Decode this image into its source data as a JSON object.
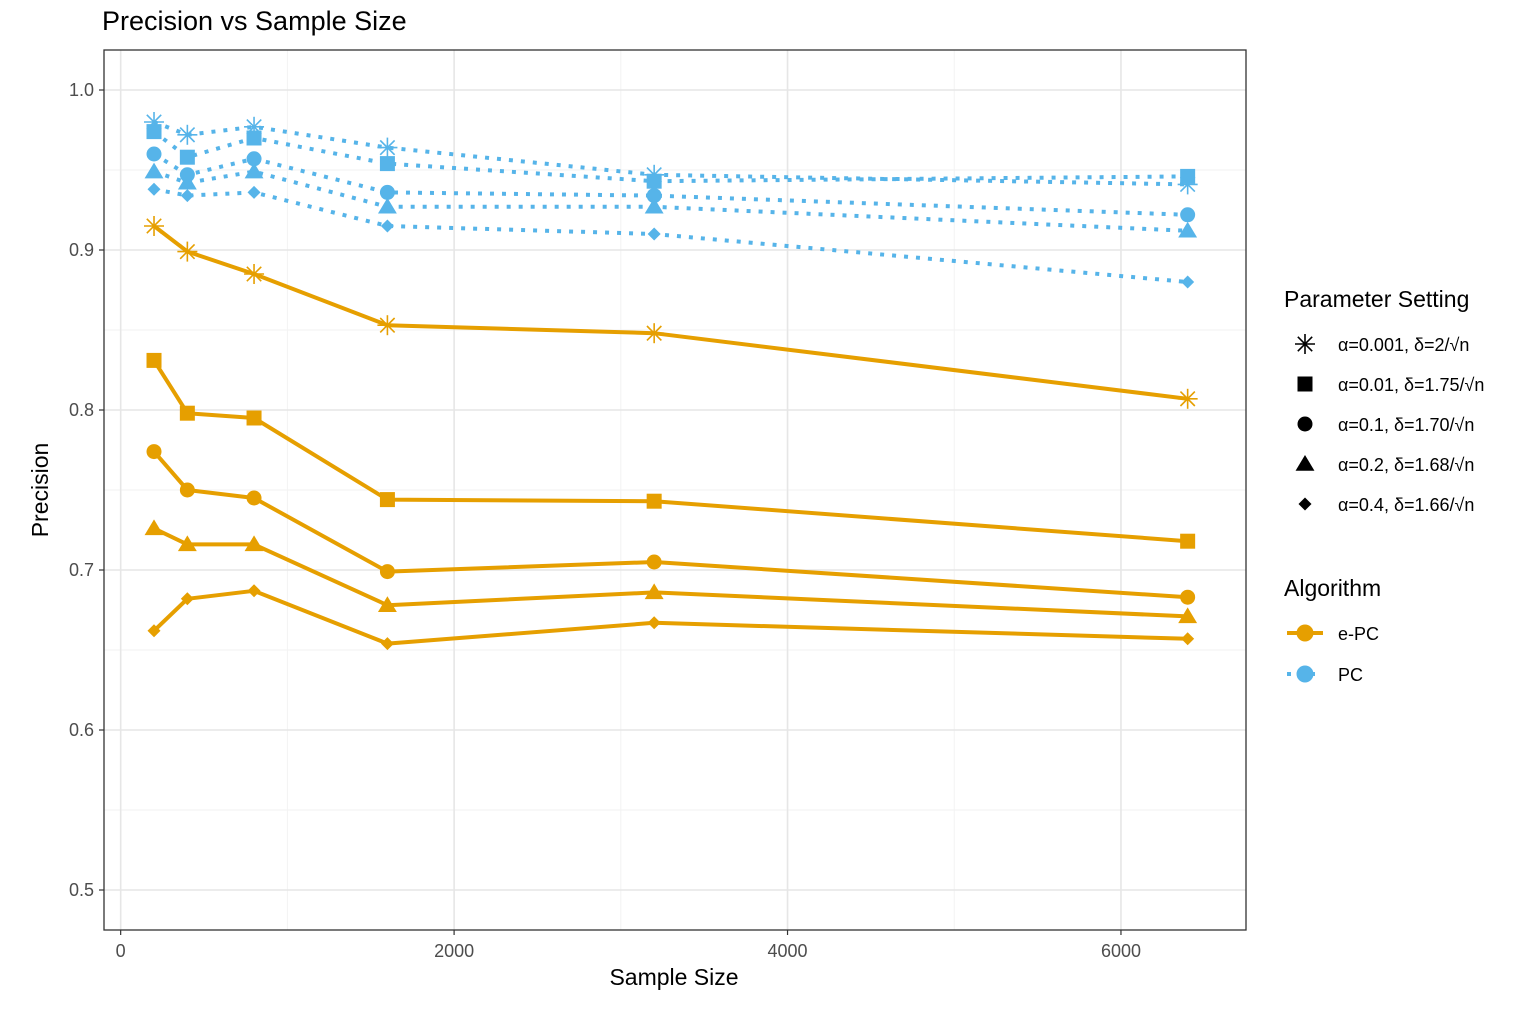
{
  "chart_data": {
    "type": "line",
    "title": "Precision vs Sample Size",
    "xlabel": "Sample Size",
    "ylabel": "Precision",
    "xlim": [
      -100,
      6750
    ],
    "ylim": [
      0.475,
      1.025
    ],
    "x_ticks": [
      0,
      2000,
      4000,
      6000
    ],
    "y_ticks": [
      0.5,
      0.6,
      0.7,
      0.8,
      0.9,
      1.0
    ],
    "y_tick_labels": [
      "0.5",
      "0.6",
      "0.7",
      "0.8",
      "0.9",
      "1.0"
    ],
    "x": [
      200,
      400,
      800,
      1600,
      3200,
      6400
    ],
    "grid": true,
    "legend_placement": "right",
    "legend_shape": {
      "title": "Parameter Setting",
      "entries": [
        {
          "label": "α=0.001, δ=2/√n",
          "shape": "asterisk"
        },
        {
          "label": "α=0.01, δ=1.75/√n",
          "shape": "square"
        },
        {
          "label": "α=0.1, δ=1.70/√n",
          "shape": "circle"
        },
        {
          "label": "α=0.2, δ=1.68/√n",
          "shape": "triangle"
        },
        {
          "label": "α=0.4, δ=1.66/√n",
          "shape": "diamond"
        }
      ]
    },
    "legend_algorithm": {
      "title": "Algorithm",
      "entries": [
        {
          "label": "e-PC",
          "color": "#E69F00",
          "line": "solid"
        },
        {
          "label": "PC",
          "color": "#56B4E9",
          "line": "dotted"
        }
      ]
    },
    "series": [
      {
        "algorithm": "e-PC",
        "shape": "asterisk",
        "values": [
          0.915,
          0.899,
          0.885,
          0.853,
          0.848,
          0.807
        ]
      },
      {
        "algorithm": "e-PC",
        "shape": "square",
        "values": [
          0.831,
          0.798,
          0.795,
          0.744,
          0.743,
          0.718
        ]
      },
      {
        "algorithm": "e-PC",
        "shape": "circle",
        "values": [
          0.774,
          0.75,
          0.745,
          0.699,
          0.705,
          0.683
        ]
      },
      {
        "algorithm": "e-PC",
        "shape": "triangle",
        "values": [
          0.726,
          0.716,
          0.716,
          0.678,
          0.686,
          0.671
        ]
      },
      {
        "algorithm": "e-PC",
        "shape": "diamond",
        "values": [
          0.662,
          0.682,
          0.687,
          0.654,
          0.667,
          0.657
        ]
      },
      {
        "algorithm": "PC",
        "shape": "asterisk",
        "values": [
          0.98,
          0.972,
          0.977,
          0.964,
          0.947,
          0.941
        ]
      },
      {
        "algorithm": "PC",
        "shape": "square",
        "values": [
          0.974,
          0.958,
          0.97,
          0.954,
          0.943,
          0.946
        ]
      },
      {
        "algorithm": "PC",
        "shape": "circle",
        "values": [
          0.96,
          0.947,
          0.957,
          0.936,
          0.934,
          0.922
        ]
      },
      {
        "algorithm": "PC",
        "shape": "triangle",
        "values": [
          0.949,
          0.942,
          0.949,
          0.927,
          0.927,
          0.912
        ]
      },
      {
        "algorithm": "PC",
        "shape": "diamond",
        "values": [
          0.938,
          0.934,
          0.936,
          0.915,
          0.91,
          0.88
        ]
      }
    ]
  }
}
